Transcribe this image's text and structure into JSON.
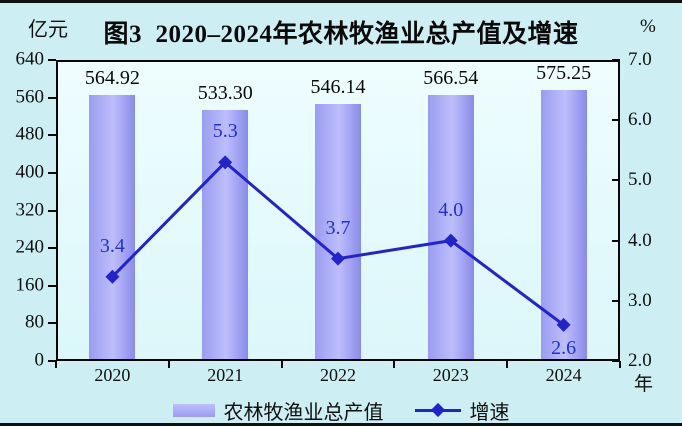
{
  "page": {
    "background": "#cdeff3"
  },
  "chart_data": {
    "type": "combo-bar-line",
    "title": "图3  2020–2024年农林牧渔业总产值及增速",
    "categories": [
      "2020",
      "2021",
      "2022",
      "2023",
      "2024"
    ],
    "x_unit": "年",
    "left_axis": {
      "unit": "亿元",
      "min": 0,
      "max": 640,
      "tick_step": 80,
      "ticks": [
        "640",
        "560",
        "480",
        "400",
        "320",
        "240",
        "160",
        "80",
        "0"
      ]
    },
    "right_axis": {
      "unit": "%",
      "min": 2.0,
      "max": 7.0,
      "tick_step": 1.0,
      "ticks": [
        "7.0",
        "6.0",
        "5.0",
        "4.0",
        "3.0",
        "2.0"
      ]
    },
    "series": [
      {
        "name": "农林牧渔业总产值",
        "type": "bar",
        "axis": "left",
        "values": [
          564.92,
          533.3,
          546.14,
          566.54,
          575.25
        ],
        "labels": [
          "564.92",
          "533.30",
          "546.14",
          "566.54",
          "575.25"
        ]
      },
      {
        "name": "增速",
        "type": "line",
        "axis": "right",
        "marker": "diamond",
        "values": [
          3.4,
          5.3,
          3.7,
          4.0,
          2.6
        ],
        "labels": [
          "3.4",
          "5.3",
          "3.7",
          "4.0",
          "2.6"
        ],
        "label_placement": [
          "above",
          "above",
          "above",
          "above",
          "below"
        ]
      }
    ],
    "legend_position": "bottom",
    "grid": false,
    "colors": {
      "background": "#cdeff3",
      "plot_top": "#effdfe",
      "plot_bottom": "#dbf7fa",
      "bar_left": "#9a9cf0",
      "bar_mid": "#bdbefb",
      "bar_right": "#898bea",
      "line": "#2323cd",
      "line_label": "#2330cc",
      "bar_label": "#0a0a0a",
      "axis": "#050505"
    }
  }
}
